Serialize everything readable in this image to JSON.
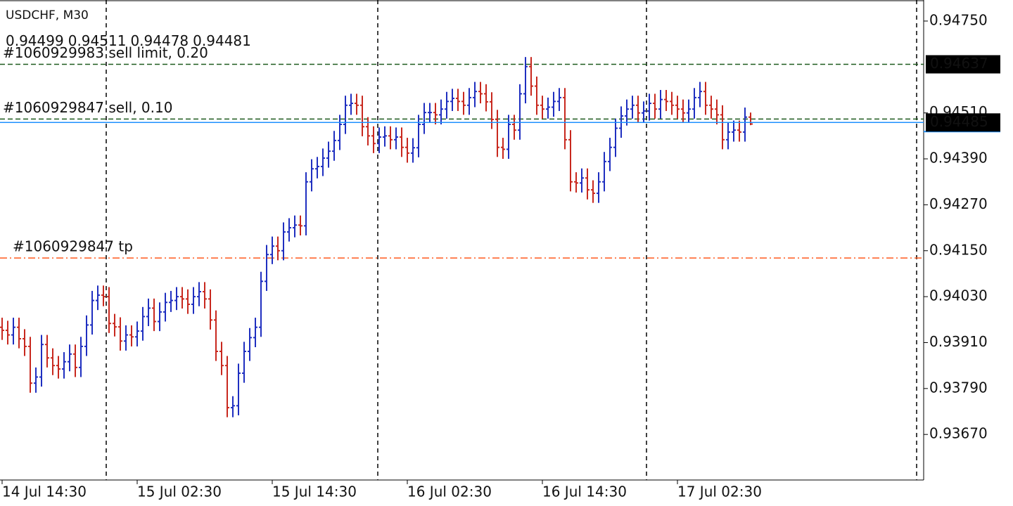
{
  "chart_data": {
    "type": "ohlc",
    "symbol": "USDCHF, M30",
    "up_color": "#1f2fc0",
    "down_color": "#c8281e",
    "ylim": [
      0.93551,
      0.94805
    ],
    "yticks": [
      {
        "value": 0.9475,
        "label": "0.94750"
      },
      {
        "value": 0.9451,
        "label": "0.94510"
      },
      {
        "value": 0.9439,
        "label": "0.94390"
      },
      {
        "value": 0.9427,
        "label": "0.94270"
      },
      {
        "value": 0.9415,
        "label": "0.94150"
      },
      {
        "value": 0.9403,
        "label": "0.94030"
      },
      {
        "value": 0.9391,
        "label": "0.93910"
      },
      {
        "value": 0.9379,
        "label": "0.93790"
      },
      {
        "value": 0.9367,
        "label": "0.93670"
      }
    ],
    "categories": [
      "14 Jul 14:30",
      null,
      null,
      null,
      null,
      null,
      null,
      null,
      null,
      null,
      null,
      null,
      null,
      null,
      null,
      null,
      null,
      null,
      null,
      null,
      null,
      null,
      null,
      null,
      "15 Jul 02:30",
      null,
      null,
      null,
      null,
      null,
      null,
      null,
      null,
      null,
      null,
      null,
      null,
      null,
      null,
      null,
      null,
      null,
      null,
      null,
      null,
      null,
      null,
      null,
      "15 Jul 14:30",
      null,
      null,
      null,
      null,
      null,
      null,
      null,
      null,
      null,
      null,
      null,
      null,
      null,
      null,
      null,
      null,
      null,
      null,
      null,
      null,
      null,
      null,
      null,
      "16 Jul 02:30",
      null,
      null,
      null,
      null,
      null,
      null,
      null,
      null,
      null,
      null,
      null,
      null,
      null,
      null,
      null,
      null,
      null,
      null,
      null,
      null,
      null,
      null,
      null,
      "16 Jul 14:30",
      null,
      null,
      null,
      null,
      null,
      null,
      null,
      null,
      null,
      null,
      null,
      null,
      null,
      null,
      null,
      null,
      null,
      null,
      null,
      null,
      null,
      null,
      null,
      "17 Jul 02:30",
      null,
      null,
      null,
      null,
      null,
      null,
      null,
      null,
      null,
      null,
      null,
      null,
      null
    ],
    "open": [
      0.9395,
      0.93942,
      0.9393,
      0.9395,
      0.9392,
      0.939,
      0.93804,
      0.9382,
      0.93905,
      0.9387,
      0.9385,
      0.93841,
      0.9386,
      0.9388,
      0.93845,
      0.939,
      0.93956,
      0.9402,
      0.94034,
      0.9403,
      0.9396,
      0.93951,
      0.93914,
      0.9393,
      0.93925,
      0.9394,
      0.93978,
      0.94,
      0.93965,
      0.9399,
      0.94015,
      0.9402,
      0.9403,
      0.94024,
      0.9401,
      0.9403,
      0.94043,
      0.94024,
      0.93969,
      0.93887,
      0.9385,
      0.9374,
      0.93745,
      0.9383,
      0.93887,
      0.93923,
      0.9395,
      0.9407,
      0.9414,
      0.94162,
      0.9415,
      0.94199,
      0.9421,
      0.94217,
      0.94215,
      0.9433,
      0.94364,
      0.9437,
      0.94392,
      0.9441,
      0.94438,
      0.9448,
      0.9453,
      0.94535,
      0.9453,
      0.94474,
      0.9445,
      0.9443,
      0.94447,
      0.9445,
      0.9444,
      0.94447,
      0.9442,
      0.94405,
      0.94419,
      0.9448,
      0.94511,
      0.94511,
      0.94505,
      0.9452,
      0.9454,
      0.94548,
      0.9454,
      0.9453,
      0.9455,
      0.94566,
      0.9456,
      0.94539,
      0.94493,
      0.9442,
      0.94415,
      0.9448,
      0.94465,
      0.9456,
      0.94631,
      0.9458,
      0.9453,
      0.9452,
      0.94525,
      0.9454,
      0.9455,
      0.9444,
      0.9433,
      0.94327,
      0.9434,
      0.94309,
      0.943,
      0.9433,
      0.94383,
      0.9442,
      0.9447,
      0.94502,
      0.9452,
      0.9453,
      0.9451,
      0.94515,
      0.94535,
      0.9452,
      0.94545,
      0.9454,
      0.9453,
      0.9452,
      0.9451,
      0.9452,
      0.9455,
      0.94566,
      0.9453,
      0.9452,
      0.94505,
      0.9444,
      0.9446,
      0.94465,
      0.9446,
      0.94499
    ],
    "high": [
      0.93975,
      0.93967,
      0.93975,
      0.93975,
      0.93945,
      0.93925,
      0.93845,
      0.9393,
      0.9393,
      0.93895,
      0.93875,
      0.93885,
      0.93905,
      0.93905,
      0.93925,
      0.93981,
      0.94045,
      0.94059,
      0.94059,
      0.94055,
      0.93985,
      0.93976,
      0.93955,
      0.93955,
      0.93965,
      0.94003,
      0.94025,
      0.94025,
      0.94015,
      0.9404,
      0.94045,
      0.94055,
      0.94055,
      0.94049,
      0.94055,
      0.94068,
      0.94068,
      0.94049,
      0.93994,
      0.93912,
      0.93875,
      0.9377,
      0.93855,
      0.93912,
      0.93948,
      0.93975,
      0.94095,
      0.94165,
      0.94187,
      0.94187,
      0.94224,
      0.94235,
      0.94242,
      0.94242,
      0.94355,
      0.94389,
      0.94395,
      0.94417,
      0.94435,
      0.94463,
      0.94505,
      0.94555,
      0.9456,
      0.9456,
      0.94555,
      0.94499,
      0.94475,
      0.94472,
      0.94475,
      0.94475,
      0.94472,
      0.94472,
      0.94445,
      0.94444,
      0.94505,
      0.94536,
      0.94536,
      0.94536,
      0.94545,
      0.94565,
      0.94573,
      0.94573,
      0.94565,
      0.94575,
      0.94591,
      0.94591,
      0.94585,
      0.94564,
      0.94518,
      0.94445,
      0.94505,
      0.94505,
      0.94585,
      0.94656,
      0.94656,
      0.94605,
      0.94555,
      0.9455,
      0.94565,
      0.94575,
      0.94575,
      0.94465,
      0.94355,
      0.94365,
      0.94365,
      0.94334,
      0.94355,
      0.94408,
      0.94445,
      0.94495,
      0.94527,
      0.94545,
      0.94555,
      0.94555,
      0.9454,
      0.9456,
      0.9456,
      0.9457,
      0.9457,
      0.94565,
      0.94555,
      0.94545,
      0.94545,
      0.94575,
      0.94591,
      0.94591,
      0.94555,
      0.94545,
      0.9453,
      0.94485,
      0.9449,
      0.9449,
      0.94524,
      0.94511
    ],
    "low": [
      0.93917,
      0.93905,
      0.93905,
      0.93895,
      0.93875,
      0.93779,
      0.93779,
      0.93795,
      0.93845,
      0.93825,
      0.93816,
      0.93816,
      0.93835,
      0.9382,
      0.9382,
      0.93875,
      0.93931,
      0.93995,
      0.94005,
      0.93935,
      0.93926,
      0.93889,
      0.93889,
      0.939,
      0.939,
      0.93915,
      0.93953,
      0.9394,
      0.9394,
      0.93965,
      0.9399,
      0.93995,
      0.93999,
      0.93985,
      0.93985,
      0.94005,
      0.93999,
      0.93944,
      0.93862,
      0.93825,
      0.93715,
      0.93715,
      0.9372,
      0.93805,
      0.93862,
      0.93898,
      0.93925,
      0.94045,
      0.94115,
      0.94125,
      0.94125,
      0.94174,
      0.94185,
      0.9419,
      0.9419,
      0.94305,
      0.94339,
      0.94345,
      0.94367,
      0.94385,
      0.94413,
      0.94455,
      0.94505,
      0.94505,
      0.94449,
      0.94425,
      0.94405,
      0.94405,
      0.94422,
      0.94415,
      0.94415,
      0.94395,
      0.9438,
      0.9438,
      0.94394,
      0.94455,
      0.94486,
      0.9448,
      0.9448,
      0.94495,
      0.94515,
      0.94515,
      0.94505,
      0.94505,
      0.94525,
      0.94535,
      0.94514,
      0.94468,
      0.94395,
      0.9439,
      0.9439,
      0.9444,
      0.9444,
      0.94535,
      0.94555,
      0.94505,
      0.94495,
      0.94495,
      0.945,
      0.94515,
      0.94415,
      0.94305,
      0.94302,
      0.94302,
      0.94284,
      0.94275,
      0.94275,
      0.94305,
      0.94358,
      0.94395,
      0.94445,
      0.94477,
      0.94495,
      0.94485,
      0.94485,
      0.9449,
      0.94495,
      0.94495,
      0.94515,
      0.94505,
      0.94495,
      0.94485,
      0.94485,
      0.94495,
      0.94525,
      0.94505,
      0.94495,
      0.9448,
      0.94415,
      0.94415,
      0.94435,
      0.94435,
      0.94435,
      0.94478
    ],
    "close": [
      0.93942,
      0.9393,
      0.9395,
      0.9392,
      0.939,
      0.93804,
      0.9382,
      0.93905,
      0.9387,
      0.9385,
      0.93841,
      0.9386,
      0.9388,
      0.93845,
      0.939,
      0.93956,
      0.9402,
      0.94034,
      0.9403,
      0.9396,
      0.93951,
      0.93914,
      0.9393,
      0.93925,
      0.9394,
      0.93978,
      0.94,
      0.93965,
      0.9399,
      0.94015,
      0.9402,
      0.9403,
      0.94024,
      0.9401,
      0.9403,
      0.94043,
      0.94024,
      0.93969,
      0.93887,
      0.9385,
      0.9374,
      0.93745,
      0.9383,
      0.93887,
      0.93923,
      0.9395,
      0.9407,
      0.9414,
      0.94162,
      0.9415,
      0.94199,
      0.9421,
      0.94217,
      0.94215,
      0.9433,
      0.94364,
      0.9437,
      0.94392,
      0.9441,
      0.94438,
      0.9448,
      0.9453,
      0.94535,
      0.9453,
      0.94474,
      0.9445,
      0.9443,
      0.94447,
      0.9445,
      0.9444,
      0.94447,
      0.9442,
      0.94405,
      0.94419,
      0.9448,
      0.94511,
      0.94511,
      0.94505,
      0.9452,
      0.9454,
      0.94548,
      0.9454,
      0.9453,
      0.9455,
      0.94566,
      0.9456,
      0.94539,
      0.94493,
      0.9442,
      0.94415,
      0.9448,
      0.94465,
      0.9456,
      0.94631,
      0.9458,
      0.9453,
      0.9452,
      0.94525,
      0.9454,
      0.9455,
      0.9444,
      0.9433,
      0.94327,
      0.9434,
      0.94309,
      0.943,
      0.9433,
      0.94383,
      0.9442,
      0.9447,
      0.94502,
      0.9452,
      0.9453,
      0.9451,
      0.94515,
      0.94535,
      0.9452,
      0.94545,
      0.9454,
      0.9453,
      0.9452,
      0.9451,
      0.9452,
      0.9455,
      0.94566,
      0.9453,
      0.9452,
      0.94505,
      0.9444,
      0.9446,
      0.94465,
      0.9446,
      0.94499,
      0.94481
    ],
    "order_lines": [
      {
        "label": "#1060929983 sell limit, 0.20",
        "price": 0.94637,
        "color": "#1e5a1e",
        "style": "dashed",
        "price_box": true
      },
      {
        "label": "#1060929847 sell, 0.10",
        "price": 0.94494,
        "color": "#1e5a1e",
        "style": "dashed",
        "price_box": false
      },
      {
        "label": "#1060929847 tp",
        "price": 0.94131,
        "color": "#ff5a1e",
        "style": "dashdot",
        "price_box": false
      }
    ],
    "price_line": {
      "price": 0.94485,
      "color": "#1e90ff"
    }
  }
}
